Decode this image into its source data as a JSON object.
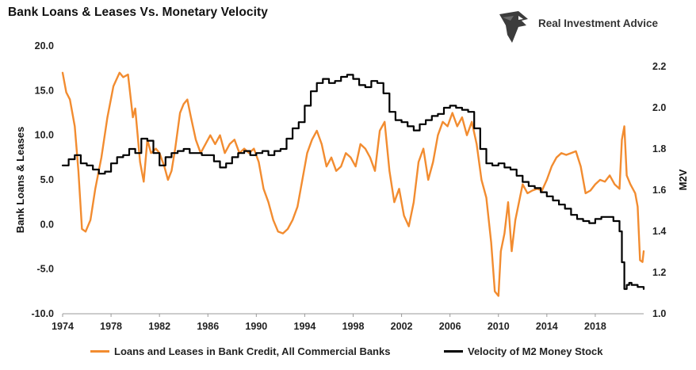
{
  "page": {
    "title": "Bank Loans & Leases Vs. Monetary Velocity",
    "brand": "Real Investment Advice"
  },
  "colors": {
    "loans": "#F28C30",
    "velocity": "#000000",
    "logo": "#3c3c3c"
  },
  "icons": {
    "logo": "eagle-head-icon"
  },
  "chart_data": {
    "type": "line",
    "title": "Bank Loans & Leases Vs. Monetary Velocity",
    "x_ticks": [
      "1974",
      "1978",
      "1982",
      "1986",
      "1990",
      "1994",
      "1998",
      "2002",
      "2006",
      "2010",
      "2014",
      "2018"
    ],
    "xlim": [
      1974,
      2022
    ],
    "y_left": {
      "label": "Bank Loans & Leases",
      "ylim": [
        -10,
        20
      ],
      "ticks": [
        "20.0",
        "15.0",
        "10.0",
        "5.0",
        "0.0",
        "-5.0",
        "-10.0"
      ]
    },
    "y_right": {
      "label": "M2V",
      "ylim": [
        1.0,
        2.3
      ],
      "ticks": [
        "2.2",
        "2.0",
        "1.8",
        "1.6",
        "1.4",
        "1.2",
        "1.0"
      ]
    },
    "series": [
      {
        "name": "Loans and Leases in Bank Credit, All Commercial Banks",
        "axis": "left",
        "color": "#F28C30",
        "x": [
          1974.0,
          1974.3,
          1974.6,
          1975.0,
          1975.3,
          1975.6,
          1975.9,
          1976.3,
          1976.7,
          1977.2,
          1977.7,
          1978.2,
          1978.7,
          1979.0,
          1979.4,
          1979.8,
          1980.0,
          1980.4,
          1980.7,
          1981.0,
          1981.3,
          1981.7,
          1982.0,
          1982.4,
          1982.7,
          1983.0,
          1983.3,
          1983.7,
          1984.0,
          1984.3,
          1984.6,
          1985.0,
          1985.4,
          1985.8,
          1986.2,
          1986.6,
          1987.0,
          1987.4,
          1987.8,
          1988.2,
          1988.6,
          1989.0,
          1989.4,
          1989.8,
          1990.2,
          1990.6,
          1991.0,
          1991.4,
          1991.8,
          1992.2,
          1992.6,
          1993.0,
          1993.4,
          1993.8,
          1994.2,
          1994.6,
          1995.0,
          1995.4,
          1995.8,
          1996.2,
          1996.6,
          1997.0,
          1997.4,
          1997.8,
          1998.2,
          1998.6,
          1999.0,
          1999.4,
          1999.8,
          2000.2,
          2000.6,
          2001.0,
          2001.4,
          2001.8,
          2002.2,
          2002.6,
          2003.0,
          2003.4,
          2003.8,
          2004.2,
          2004.6,
          2005.0,
          2005.4,
          2005.8,
          2006.2,
          2006.6,
          2007.0,
          2007.4,
          2007.8,
          2008.2,
          2008.6,
          2009.0,
          2009.4,
          2009.7,
          2010.0,
          2010.2,
          2010.5,
          2010.8,
          2011.1,
          2011.4,
          2011.7,
          2012.0,
          2012.4,
          2012.8,
          2013.2,
          2013.6,
          2014.0,
          2014.4,
          2014.8,
          2015.2,
          2015.6,
          2016.0,
          2016.4,
          2016.8,
          2017.2,
          2017.6,
          2018.0,
          2018.4,
          2018.8,
          2019.2,
          2019.6,
          2020.0,
          2020.2,
          2020.4,
          2020.6,
          2020.9,
          2021.1,
          2021.3,
          2021.5,
          2021.7,
          2021.9,
          2022.0
        ],
        "values": [
          17.0,
          14.8,
          14.0,
          11.0,
          6.0,
          -0.5,
          -0.8,
          0.5,
          4.0,
          7.5,
          12.0,
          15.5,
          17.0,
          16.5,
          16.8,
          12.0,
          13.0,
          7.0,
          4.8,
          9.5,
          8.0,
          8.5,
          8.0,
          6.5,
          5.0,
          6.0,
          8.5,
          12.5,
          13.5,
          14.0,
          12.0,
          9.5,
          8.0,
          9.0,
          10.0,
          9.0,
          10.0,
          8.0,
          9.0,
          9.5,
          8.0,
          8.5,
          8.0,
          8.5,
          7.0,
          4.0,
          2.5,
          0.5,
          -0.8,
          -1.0,
          -0.5,
          0.5,
          2.0,
          5.0,
          8.0,
          9.5,
          10.5,
          9.0,
          6.5,
          7.5,
          6.0,
          6.5,
          8.0,
          7.5,
          6.5,
          9.0,
          8.5,
          7.5,
          6.0,
          10.5,
          11.5,
          6.0,
          2.5,
          4.0,
          1.0,
          -0.2,
          2.5,
          7.0,
          8.5,
          5.0,
          7.0,
          10.0,
          11.5,
          11.0,
          12.5,
          11.0,
          12.0,
          10.0,
          11.5,
          9.0,
          5.0,
          3.0,
          -2.0,
          -7.5,
          -8.0,
          -3.0,
          -1.0,
          2.5,
          -3.0,
          0.5,
          2.5,
          4.5,
          3.5,
          3.8,
          4.0,
          3.8,
          5.0,
          6.5,
          7.5,
          8.0,
          7.8,
          8.0,
          8.2,
          6.5,
          3.5,
          3.8,
          4.5,
          5.0,
          4.8,
          5.5,
          4.5,
          4.0,
          9.5,
          11.0,
          5.5,
          4.5,
          4.0,
          3.5,
          2.0,
          -4.0,
          -4.2,
          -3.0
        ]
      },
      {
        "name": "Velocity of M2 Money Stock",
        "axis": "right",
        "color": "#000000",
        "x": [
          1974.0,
          1974.5,
          1975.0,
          1975.5,
          1976.0,
          1976.5,
          1977.0,
          1977.5,
          1978.0,
          1978.5,
          1979.0,
          1979.5,
          1980.0,
          1980.5,
          1981.0,
          1981.5,
          1982.0,
          1982.5,
          1983.0,
          1983.5,
          1984.0,
          1984.5,
          1985.0,
          1985.5,
          1986.0,
          1986.5,
          1987.0,
          1987.5,
          1988.0,
          1988.5,
          1989.0,
          1989.5,
          1990.0,
          1990.5,
          1991.0,
          1991.5,
          1992.0,
          1992.5,
          1993.0,
          1993.5,
          1994.0,
          1994.5,
          1995.0,
          1995.5,
          1996.0,
          1996.5,
          1997.0,
          1997.5,
          1998.0,
          1998.5,
          1999.0,
          1999.5,
          2000.0,
          2000.5,
          2001.0,
          2001.5,
          2002.0,
          2002.5,
          2003.0,
          2003.5,
          2004.0,
          2004.5,
          2005.0,
          2005.5,
          2006.0,
          2006.5,
          2007.0,
          2007.5,
          2008.0,
          2008.5,
          2009.0,
          2009.5,
          2010.0,
          2010.5,
          2011.0,
          2011.5,
          2012.0,
          2012.5,
          2013.0,
          2013.5,
          2014.0,
          2014.5,
          2015.0,
          2015.5,
          2016.0,
          2016.5,
          2017.0,
          2017.5,
          2018.0,
          2018.5,
          2019.0,
          2019.5,
          2020.0,
          2020.2,
          2020.4,
          2020.6,
          2020.8,
          2021.0,
          2021.5,
          2022.0
        ],
        "values": [
          1.72,
          1.75,
          1.77,
          1.73,
          1.72,
          1.7,
          1.68,
          1.69,
          1.73,
          1.76,
          1.77,
          1.8,
          1.78,
          1.85,
          1.84,
          1.78,
          1.72,
          1.76,
          1.78,
          1.79,
          1.8,
          1.78,
          1.78,
          1.77,
          1.77,
          1.74,
          1.71,
          1.73,
          1.76,
          1.78,
          1.79,
          1.77,
          1.78,
          1.79,
          1.77,
          1.79,
          1.8,
          1.85,
          1.9,
          1.93,
          2.01,
          2.08,
          2.12,
          2.14,
          2.12,
          2.13,
          2.15,
          2.16,
          2.14,
          2.11,
          2.1,
          2.13,
          2.12,
          2.07,
          1.98,
          1.94,
          1.93,
          1.91,
          1.89,
          1.92,
          1.94,
          1.96,
          1.97,
          2.0,
          2.01,
          2.0,
          1.99,
          1.98,
          1.9,
          1.8,
          1.73,
          1.72,
          1.73,
          1.71,
          1.7,
          1.67,
          1.64,
          1.62,
          1.61,
          1.59,
          1.57,
          1.55,
          1.53,
          1.51,
          1.48,
          1.46,
          1.45,
          1.44,
          1.46,
          1.47,
          1.47,
          1.45,
          1.4,
          1.25,
          1.12,
          1.14,
          1.15,
          1.14,
          1.13,
          1.12
        ]
      }
    ]
  }
}
